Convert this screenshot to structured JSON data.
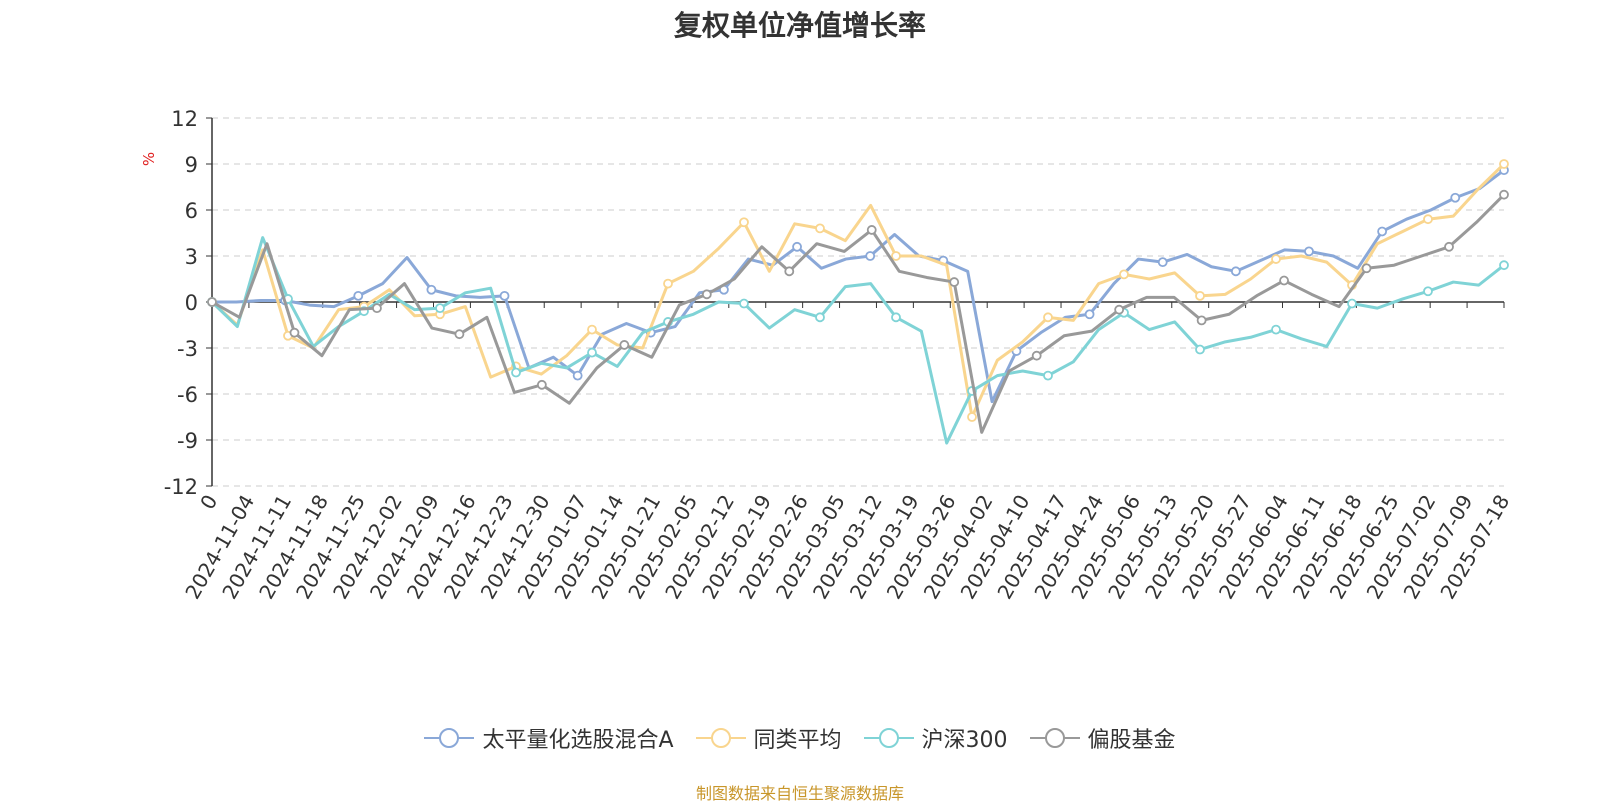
{
  "title": "复权单位净值增长率",
  "source": "制图数据来自恒生聚源数据库",
  "colors": {
    "source": "#c8962a",
    "ylabel": "#e02020"
  },
  "chart_data": {
    "type": "line",
    "title": "复权单位净值增长率",
    "ylabel": "%",
    "xlabel": "",
    "ylim": [
      -12,
      12
    ],
    "yticks": [
      12,
      9,
      6,
      3,
      0,
      -3,
      -6,
      -9,
      -12
    ],
    "grid": true,
    "legend_position": "bottom",
    "x_tick_labels": [
      "0",
      "2024-11-04",
      "2024-11-11",
      "2024-11-18",
      "2024-11-25",
      "2024-12-02",
      "2024-12-09",
      "2024-12-16",
      "2024-12-23",
      "2024-12-30",
      "2025-01-07",
      "2025-01-14",
      "2025-01-21",
      "2025-02-05",
      "2025-02-12",
      "2025-02-19",
      "2025-02-26",
      "2025-03-05",
      "2025-03-12",
      "2025-03-19",
      "2025-03-26",
      "2025-04-02",
      "2025-04-10",
      "2025-04-17",
      "2025-04-24",
      "2025-05-06",
      "2025-05-13",
      "2025-05-20",
      "2025-05-27",
      "2025-06-04",
      "2025-06-11",
      "2025-06-18",
      "2025-06-25",
      "2025-07-02",
      "2025-07-09",
      "2025-07-18"
    ],
    "series": [
      {
        "name": "太平量化选股混合A",
        "color": "#8aa8d8",
        "values": [
          0,
          0,
          0.1,
          0.1,
          -0.2,
          -0.3,
          0.4,
          1.2,
          2.9,
          0.8,
          0.4,
          0.3,
          0.4,
          -4.3,
          -3.6,
          -4.8,
          -2.1,
          -1.4,
          -2.0,
          -1.6,
          0.6,
          0.8,
          2.8,
          2.4,
          3.6,
          2.2,
          2.8,
          3.0,
          4.4,
          3.0,
          2.7,
          2.0,
          -6.5,
          -3.2,
          -2.0,
          -1.0,
          -0.8,
          1.2,
          2.8,
          2.6,
          3.1,
          2.3,
          2.0,
          2.7,
          3.4,
          3.3,
          3.0,
          2.2,
          4.6,
          5.4,
          6.0,
          6.8,
          7.4,
          8.6
        ]
      },
      {
        "name": "同类平均",
        "color": "#f9d58e",
        "values": [
          0,
          -1.5,
          3.4,
          -2.2,
          -3.0,
          -0.5,
          -0.3,
          0.8,
          -0.9,
          -0.8,
          -0.3,
          -4.9,
          -4.2,
          -4.7,
          -3.5,
          -1.8,
          -2.8,
          -3.0,
          1.2,
          2.0,
          3.5,
          5.2,
          2.0,
          5.1,
          4.8,
          4.0,
          6.3,
          3.0,
          3.0,
          2.4,
          -7.5,
          -3.8,
          -2.6,
          -1.0,
          -1.2,
          1.2,
          1.8,
          1.5,
          1.9,
          0.4,
          0.5,
          1.5,
          2.8,
          3.0,
          2.6,
          1.1,
          3.8,
          4.6,
          5.4,
          5.6,
          7.4,
          9.0
        ]
      },
      {
        "name": "沪深300",
        "color": "#7fd3d6",
        "values": [
          0,
          -1.6,
          4.2,
          0.2,
          -2.9,
          -1.6,
          -0.6,
          0.5,
          -0.5,
          -0.4,
          0.6,
          0.9,
          -4.6,
          -4.0,
          -4.3,
          -3.3,
          -4.2,
          -2.0,
          -1.3,
          -0.8,
          0.0,
          -0.1,
          -1.7,
          -0.5,
          -1.0,
          1.0,
          1.2,
          -1.0,
          -1.9,
          -9.2,
          -5.8,
          -4.8,
          -4.5,
          -4.8,
          -3.9,
          -1.8,
          -0.7,
          -1.8,
          -1.3,
          -3.1,
          -2.6,
          -2.3,
          -1.8,
          -2.4,
          -2.9,
          -0.1,
          -0.4,
          0.2,
          0.7,
          1.3,
          1.1,
          2.4
        ]
      },
      {
        "name": "偏股基金",
        "color": "#999999",
        "values": [
          0,
          -1.0,
          3.8,
          -2.0,
          -3.5,
          -0.5,
          -0.4,
          1.2,
          -1.7,
          -2.1,
          -1.0,
          -5.9,
          -5.4,
          -6.6,
          -4.3,
          -2.8,
          -3.6,
          -0.2,
          0.5,
          1.5,
          3.6,
          2.0,
          3.8,
          3.3,
          4.7,
          2.0,
          1.6,
          1.3,
          -8.5,
          -4.5,
          -3.5,
          -2.2,
          -1.9,
          -0.5,
          0.3,
          0.3,
          -1.2,
          -0.8,
          0.4,
          1.4,
          0.5,
          -0.3,
          2.2,
          2.4,
          3.0,
          3.6,
          5.2,
          7.0
        ]
      }
    ]
  }
}
